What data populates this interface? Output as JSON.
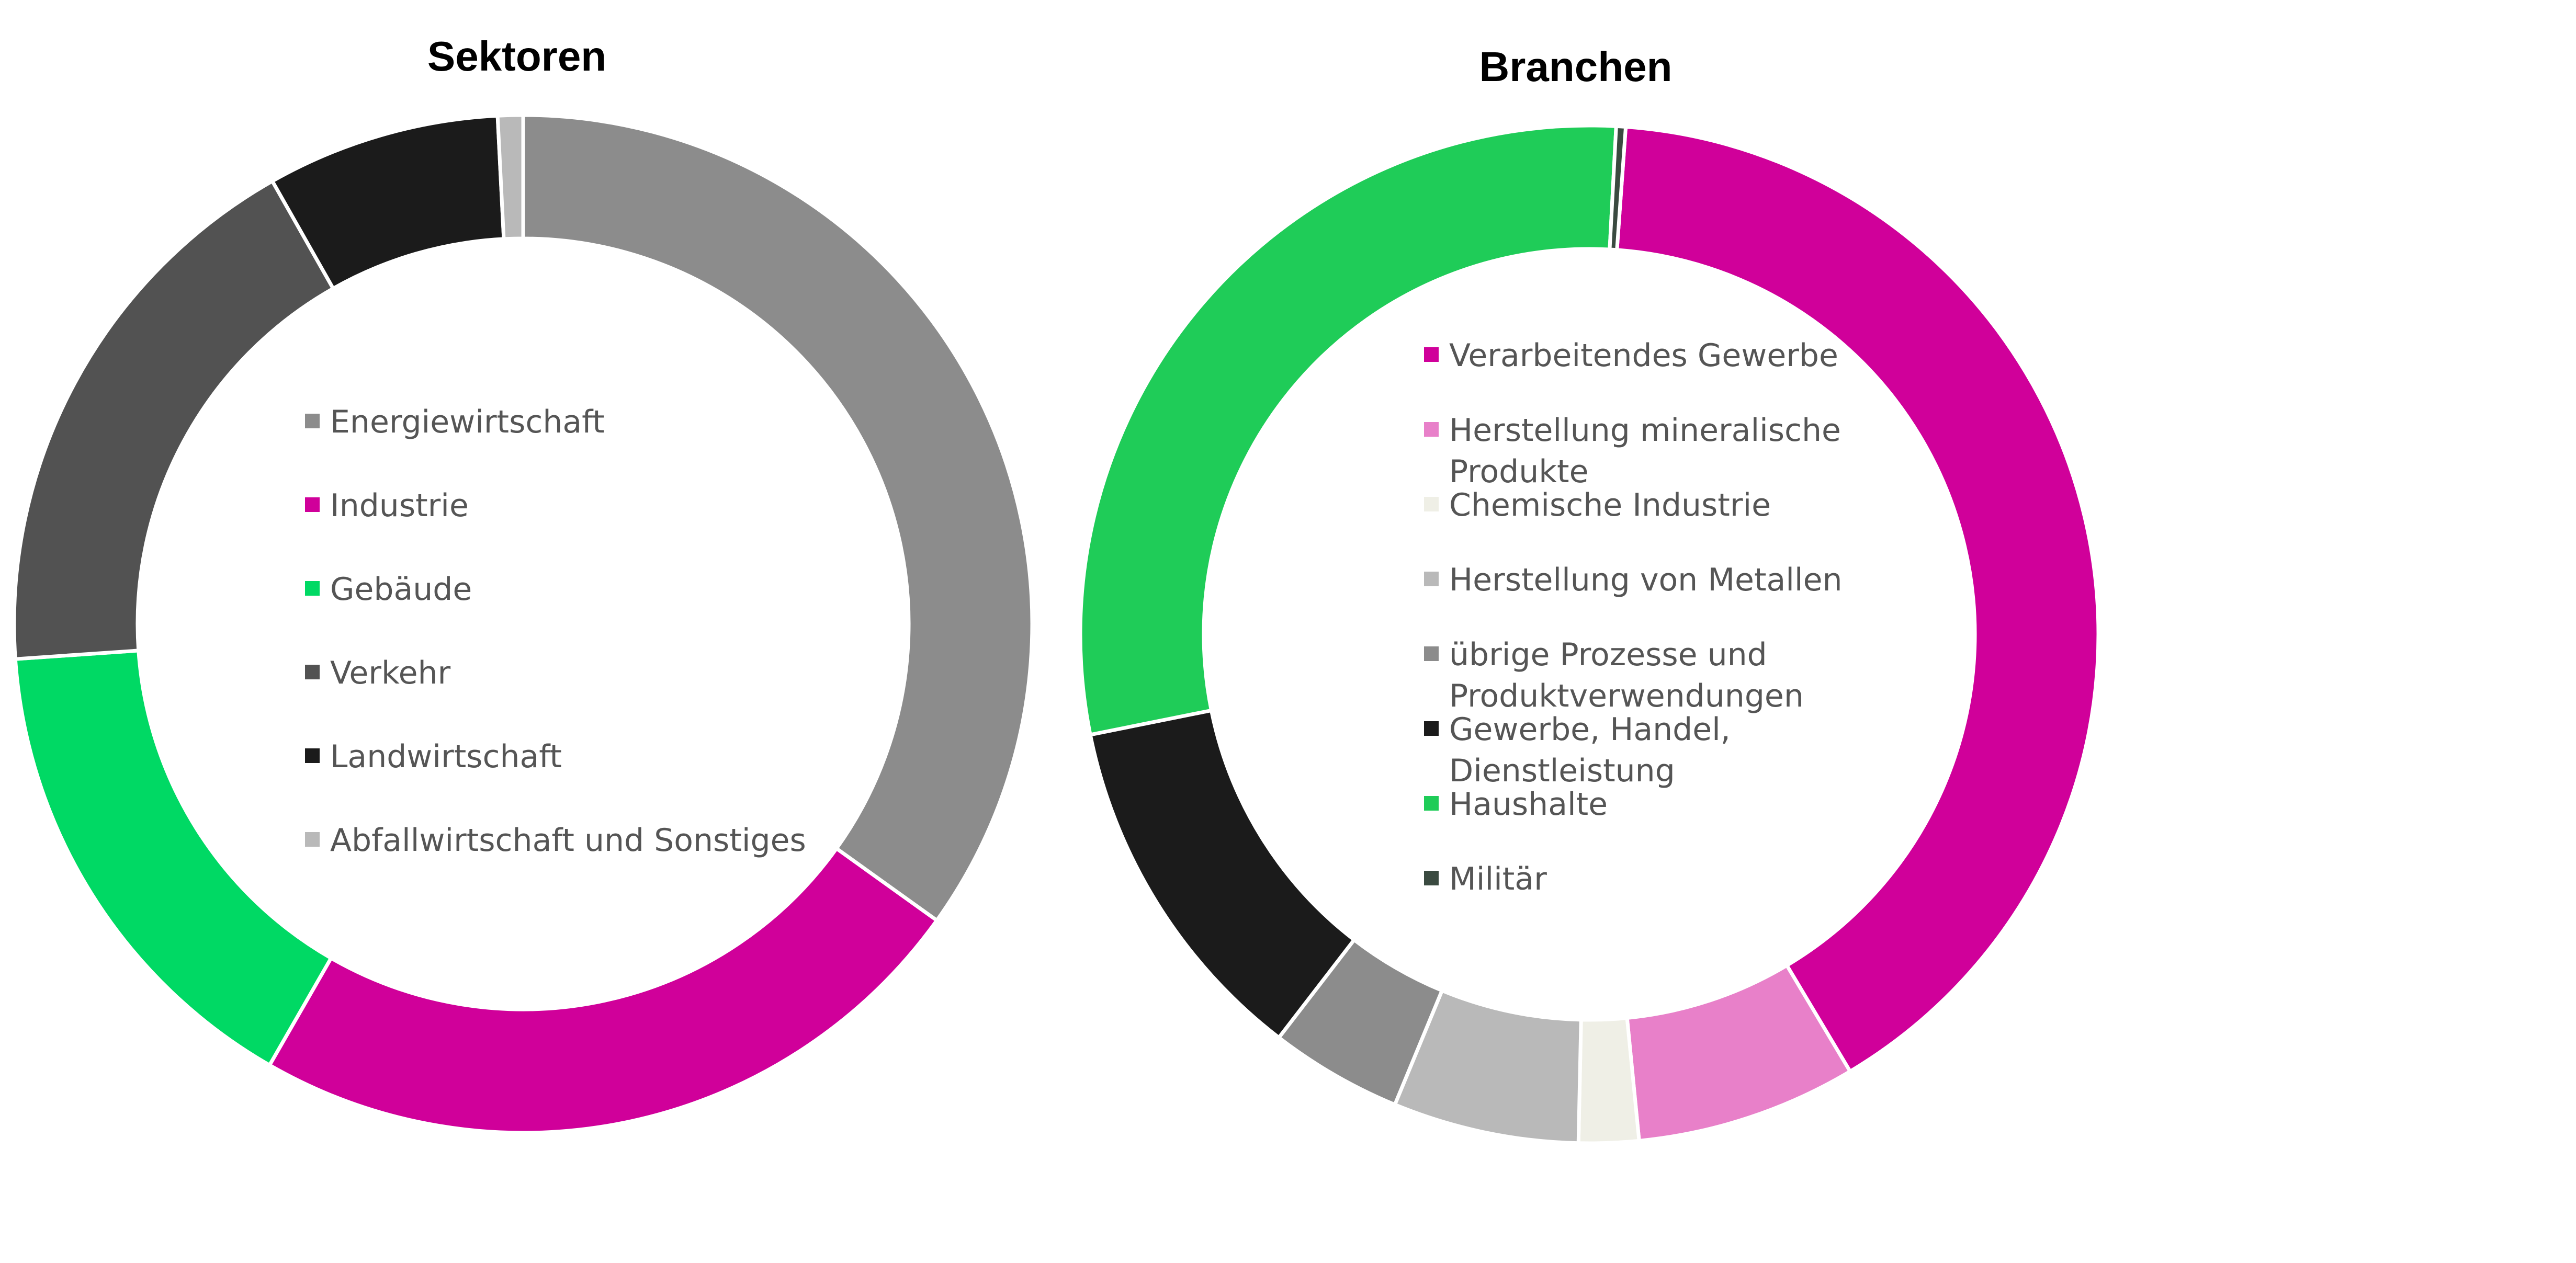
{
  "chart_data": [
    {
      "type": "pie",
      "variant": "donut",
      "title": "Sektoren",
      "legend_placement": "center",
      "categories": [
        "Energiewirtschaft",
        "Industrie",
        "Gebäude",
        "Verkehr",
        "Landwirtschaft",
        "Abfallwirtschaft und Sonstiges"
      ],
      "values": [
        34.9,
        23.4,
        15.6,
        17.9,
        7.4,
        0.8
      ],
      "colors": [
        "#8c8c8c",
        "#d0009a",
        "#00d964",
        "#525252",
        "#1b1b1b",
        "#b9b9b9"
      ]
    },
    {
      "type": "pie",
      "variant": "donut",
      "title": "Branchen",
      "legend_placement": "center",
      "categories": [
        "Verarbeitendes Gewerbe",
        "Herstellung mineralische Produkte",
        "Chemische Industrie",
        "Herstellung von Metallen",
        "übrige Prozesse und Produktverwendungen",
        "Gewerbe, Handel, Dienstleistung",
        "Haushalte",
        "Militär"
      ],
      "legend_lines": [
        [
          "Verarbeitendes Gewerbe"
        ],
        [
          "Herstellung mineralische",
          "Produkte"
        ],
        [
          "Chemische Industrie"
        ],
        [
          "Herstellung von Metallen"
        ],
        [
          "übrige Prozesse und",
          "Produktverwendungen"
        ],
        [
          "Gewerbe, Handel,",
          "Dienstleistung"
        ],
        [
          "Haushalte"
        ],
        [
          "Militär"
        ]
      ],
      "values": [
        40.3,
        7.0,
        1.9,
        5.9,
        4.2,
        11.4,
        29.0,
        0.3
      ],
      "colors": [
        "#d0009a",
        "#e880c9",
        "#efefe6",
        "#b9b9b9",
        "#8c8c8c",
        "#1b1b1b",
        "#1fcc58",
        "#3a4a40"
      ]
    }
  ]
}
